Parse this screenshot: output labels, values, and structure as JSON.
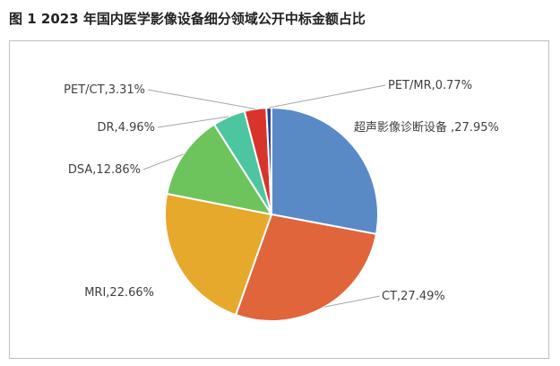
{
  "figure": {
    "title": "图 1   2023 年国内医学影像设备细分领域公开中标金额占比"
  },
  "chart_data": {
    "type": "pie",
    "title": "",
    "unit": "%",
    "slices": [
      {
        "label": "超声影像诊断设备 ,27.95%",
        "name": "超声影像诊断设备",
        "value": 27.95,
        "color": "#5a8ac6"
      },
      {
        "label": "CT,27.49%",
        "name": "CT",
        "value": 27.49,
        "color": "#e0653a"
      },
      {
        "label": "MRI,22.66%",
        "name": "MRI",
        "value": 22.66,
        "color": "#e6a92b"
      },
      {
        "label": "DSA,12.86%",
        "name": "DSA",
        "value": 12.86,
        "color": "#6dc45c"
      },
      {
        "label": "DR,4.96%",
        "name": "DR",
        "value": 4.96,
        "color": "#4dc5a0"
      },
      {
        "label": "PET/CT,3.31%",
        "name": "PET/CT",
        "value": 3.31,
        "color": "#d9342b"
      },
      {
        "label": "PET/MR,0.77%",
        "name": "PET/MR",
        "value": 0.77,
        "color": "#2f3f92"
      }
    ],
    "legend": "none"
  }
}
